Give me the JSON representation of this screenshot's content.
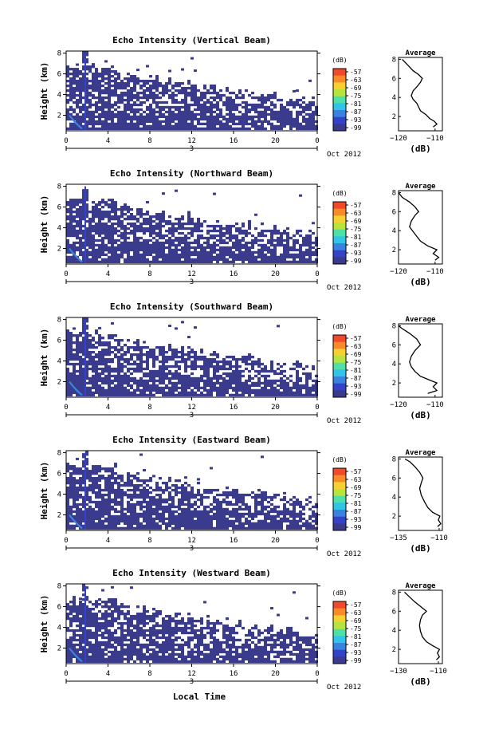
{
  "chart_data": {
    "type": "heatmap",
    "xlabel": "Local Time",
    "x_ticks": [
      "0",
      "4",
      "8",
      "12",
      "16",
      "20",
      "0"
    ],
    "date_label": "Oct 2012",
    "day_mark": "3",
    "ylabel": "Height (km)",
    "y_ticks": [
      "2",
      "4",
      "6",
      "8"
    ],
    "colorbar": {
      "unit": "(dB)",
      "ticks": [
        "-57",
        "-63",
        "-69",
        "-75",
        "-81",
        "-87",
        "-93",
        "-99"
      ],
      "colors": [
        "#f04a2a",
        "#f88a28",
        "#f6d030",
        "#b7e43a",
        "#4fe0a8",
        "#2fc4e8",
        "#3a82e0",
        "#3442c8",
        "#3a3a8c"
      ]
    },
    "panels": [
      {
        "title": "Echo Intensity (Vertical Beam)",
        "avg": {
          "title": "Average",
          "xlabel": "(dB)",
          "x_ticks": [
            "-120",
            "-110"
          ],
          "xlim": [
            -120,
            -108
          ],
          "profile": [
            [
              -110.5,
              0.9
            ],
            [
              -109.5,
              1.2
            ],
            [
              -110.2,
              1.5
            ],
            [
              -111.5,
              1.8
            ],
            [
              -112.5,
              2.2
            ],
            [
              -114,
              2.6
            ],
            [
              -114.5,
              3.0
            ],
            [
              -115,
              3.4
            ],
            [
              -116,
              3.8
            ],
            [
              -116.5,
              4.2
            ],
            [
              -116,
              4.7
            ],
            [
              -115,
              5.1
            ],
            [
              -114,
              5.6
            ],
            [
              -113.5,
              6.0
            ],
            [
              -114.5,
              6.4
            ],
            [
              -116,
              6.8
            ],
            [
              -117,
              7.2
            ],
            [
              -118,
              7.6
            ],
            [
              -119,
              8.0
            ]
          ]
        }
      },
      {
        "title": "Echo Intensity (Northward Beam)",
        "avg": {
          "title": "Average",
          "xlabel": "(dB)",
          "x_ticks": [
            "-120",
            "-110"
          ],
          "xlim": [
            -120,
            -108
          ],
          "profile": [
            [
              -110,
              0.9
            ],
            [
              -109,
              1.2
            ],
            [
              -110.5,
              1.6
            ],
            [
              -109.5,
              2.0
            ],
            [
              -112,
              2.4
            ],
            [
              -114,
              2.9
            ],
            [
              -115,
              3.4
            ],
            [
              -116,
              3.9
            ],
            [
              -117,
              4.4
            ],
            [
              -116.5,
              5.0
            ],
            [
              -115.5,
              5.6
            ],
            [
              -114.5,
              6.0
            ],
            [
              -115.5,
              6.5
            ],
            [
              -117,
              7.0
            ],
            [
              -119,
              7.5
            ],
            [
              -120,
              8.0
            ]
          ]
        }
      },
      {
        "title": "Echo Intensity (Southward Beam)",
        "avg": {
          "title": "Average",
          "xlabel": "(dB)",
          "x_ticks": [
            "-120",
            "-110"
          ],
          "xlim": [
            -120,
            -108
          ],
          "profile": [
            [
              -112,
              0.9
            ],
            [
              -109.5,
              1.2
            ],
            [
              -110.5,
              1.6
            ],
            [
              -109.5,
              2.0
            ],
            [
              -111.5,
              2.3
            ],
            [
              -114,
              2.7
            ],
            [
              -115.5,
              3.2
            ],
            [
              -116.5,
              3.7
            ],
            [
              -117,
              4.2
            ],
            [
              -116.5,
              4.8
            ],
            [
              -115.5,
              5.4
            ],
            [
              -114,
              6.0
            ],
            [
              -115,
              6.6
            ],
            [
              -117,
              7.2
            ],
            [
              -119,
              7.7
            ],
            [
              -120,
              8.0
            ]
          ]
        }
      },
      {
        "title": "Echo Intensity (Eastward Beam)",
        "avg": {
          "title": "Average",
          "xlabel": "(dB)",
          "x_ticks": [
            "-135",
            "-110"
          ],
          "xlim": [
            -135,
            -108
          ],
          "profile": [
            [
              -111,
              0.9
            ],
            [
              -109,
              1.2
            ],
            [
              -110.5,
              1.6
            ],
            [
              -109.5,
              2.0
            ],
            [
              -114,
              2.4
            ],
            [
              -117,
              2.9
            ],
            [
              -119,
              3.5
            ],
            [
              -121,
              4.2
            ],
            [
              -122,
              4.9
            ],
            [
              -121,
              5.5
            ],
            [
              -120,
              6.0
            ],
            [
              -122,
              6.6
            ],
            [
              -125,
              7.2
            ],
            [
              -128,
              7.7
            ],
            [
              -131,
              8.0
            ]
          ]
        }
      },
      {
        "title": "Echo Intensity (Westward Beam)",
        "avg": {
          "title": "Average",
          "xlabel": "(dB)",
          "x_ticks": [
            "-130",
            "-110"
          ],
          "xlim": [
            -130,
            -108
          ],
          "profile": [
            [
              -111,
              0.9
            ],
            [
              -109.5,
              1.2
            ],
            [
              -110.5,
              1.6
            ],
            [
              -109.5,
              2.0
            ],
            [
              -113,
              2.4
            ],
            [
              -116,
              2.8
            ],
            [
              -118,
              3.3
            ],
            [
              -119,
              3.9
            ],
            [
              -119.5,
              4.5
            ],
            [
              -119,
              5.1
            ],
            [
              -118,
              5.6
            ],
            [
              -116,
              6.0
            ],
            [
              -119,
              6.5
            ],
            [
              -122,
              7.0
            ],
            [
              -125,
              7.6
            ],
            [
              -127,
              8.0
            ]
          ]
        }
      }
    ]
  }
}
